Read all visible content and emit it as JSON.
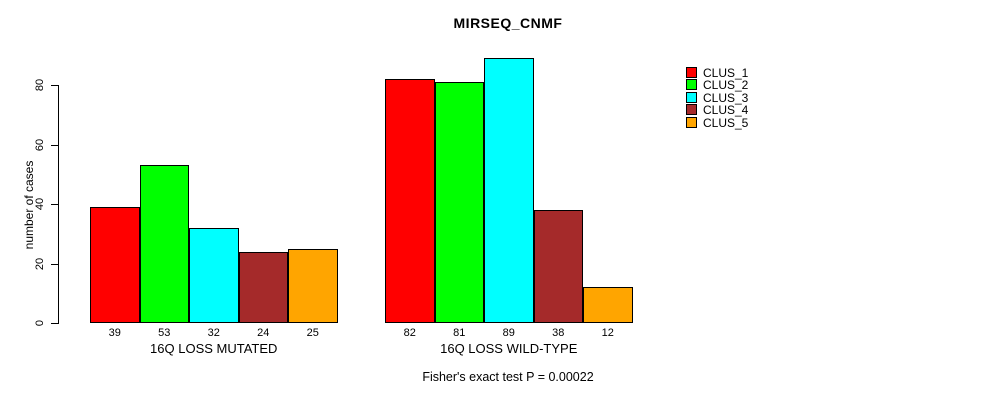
{
  "title": "MIRSEQ_CNMF",
  "y_axis": {
    "label": "number of cases",
    "ticks": [
      0,
      20,
      40,
      60,
      80
    ]
  },
  "annotation": "Fisher's exact test P = 0.00022",
  "legend": {
    "entries": [
      {
        "label": "CLUS_1",
        "color": "#FF0000"
      },
      {
        "label": "CLUS_2",
        "color": "#00FF00"
      },
      {
        "label": "CLUS_3",
        "color": "#00FFFF"
      },
      {
        "label": "CLUS_4",
        "color": "#A52A2A"
      },
      {
        "label": "CLUS_5",
        "color": "#FFA500"
      }
    ]
  },
  "chart_data": {
    "type": "bar",
    "title": "MIRSEQ_CNMF",
    "xlabel": "",
    "ylabel": "number of cases",
    "ylim": [
      0,
      89
    ],
    "yticks": [
      0,
      20,
      40,
      60,
      80
    ],
    "grid": false,
    "legend_position": "right",
    "categories": [
      "16Q LOSS MUTATED",
      "16Q LOSS WILD-TYPE"
    ],
    "series": [
      {
        "name": "CLUS_1",
        "color": "#FF0000",
        "values": [
          39,
          82
        ]
      },
      {
        "name": "CLUS_2",
        "color": "#00FF00",
        "values": [
          53,
          81
        ]
      },
      {
        "name": "CLUS_3",
        "color": "#00FFFF",
        "values": [
          32,
          89
        ]
      },
      {
        "name": "CLUS_4",
        "color": "#A52A2A",
        "values": [
          24,
          38
        ]
      },
      {
        "name": "CLUS_5",
        "color": "#FFA500",
        "values": [
          25,
          12
        ]
      }
    ],
    "bar_value_labels": {
      "16Q LOSS MUTATED": [
        39,
        53,
        32,
        24,
        25
      ],
      "16Q LOSS WILD-TYPE": [
        82,
        81,
        89,
        38,
        12
      ]
    },
    "annotation": "Fisher's exact test P = 0.00022"
  }
}
